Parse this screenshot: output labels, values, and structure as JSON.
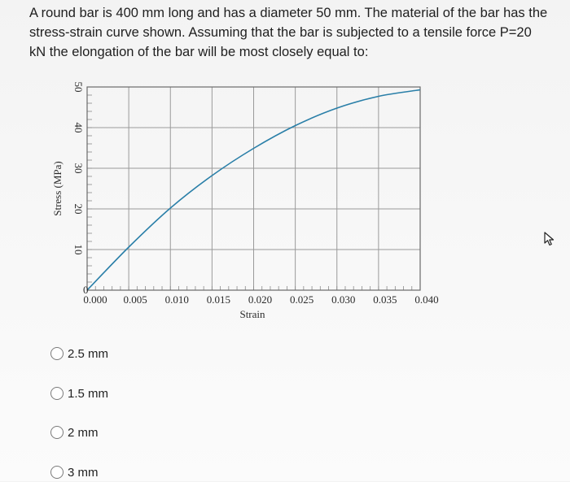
{
  "question": {
    "text": "A round bar is 400 mm long and has a diameter 50 mm. The material of the bar has the stress-strain curve shown. Assuming that the bar is subjected to a tensile force P=20 kN the elongation of the bar will be most closely equal to:"
  },
  "chart_data": {
    "type": "line",
    "xlabel": "Strain",
    "ylabel": "Stress (MPa)",
    "xlim": [
      0,
      0.04
    ],
    "ylim": [
      0,
      50
    ],
    "x_ticks": [
      "0.000",
      "0.005",
      "0.010",
      "0.015",
      "0.020",
      "0.025",
      "0.030",
      "0.035",
      "0.040"
    ],
    "y_ticks": [
      "0",
      "10",
      "20",
      "30",
      "40",
      "50"
    ],
    "grid": true,
    "series": [
      {
        "x": [
          0,
          0.005,
          0.01,
          0.015,
          0.02,
          0.025,
          0.03,
          0.035,
          0.04
        ],
        "values": [
          0,
          10.6,
          20.2,
          28.2,
          34.9,
          40.5,
          44.8,
          47.7,
          49.3
        ],
        "color": "#2a7fa8"
      }
    ]
  },
  "options": [
    {
      "label": "2.5 mm"
    },
    {
      "label": "1.5 mm"
    },
    {
      "label": "2 mm"
    },
    {
      "label": "3 mm"
    }
  ],
  "colors": {
    "curve": "#2a7fa8",
    "grid": "#9a9a9a",
    "frame": "#6a6a6a"
  },
  "icons": {
    "cursor": "mouse-pointer-icon"
  }
}
